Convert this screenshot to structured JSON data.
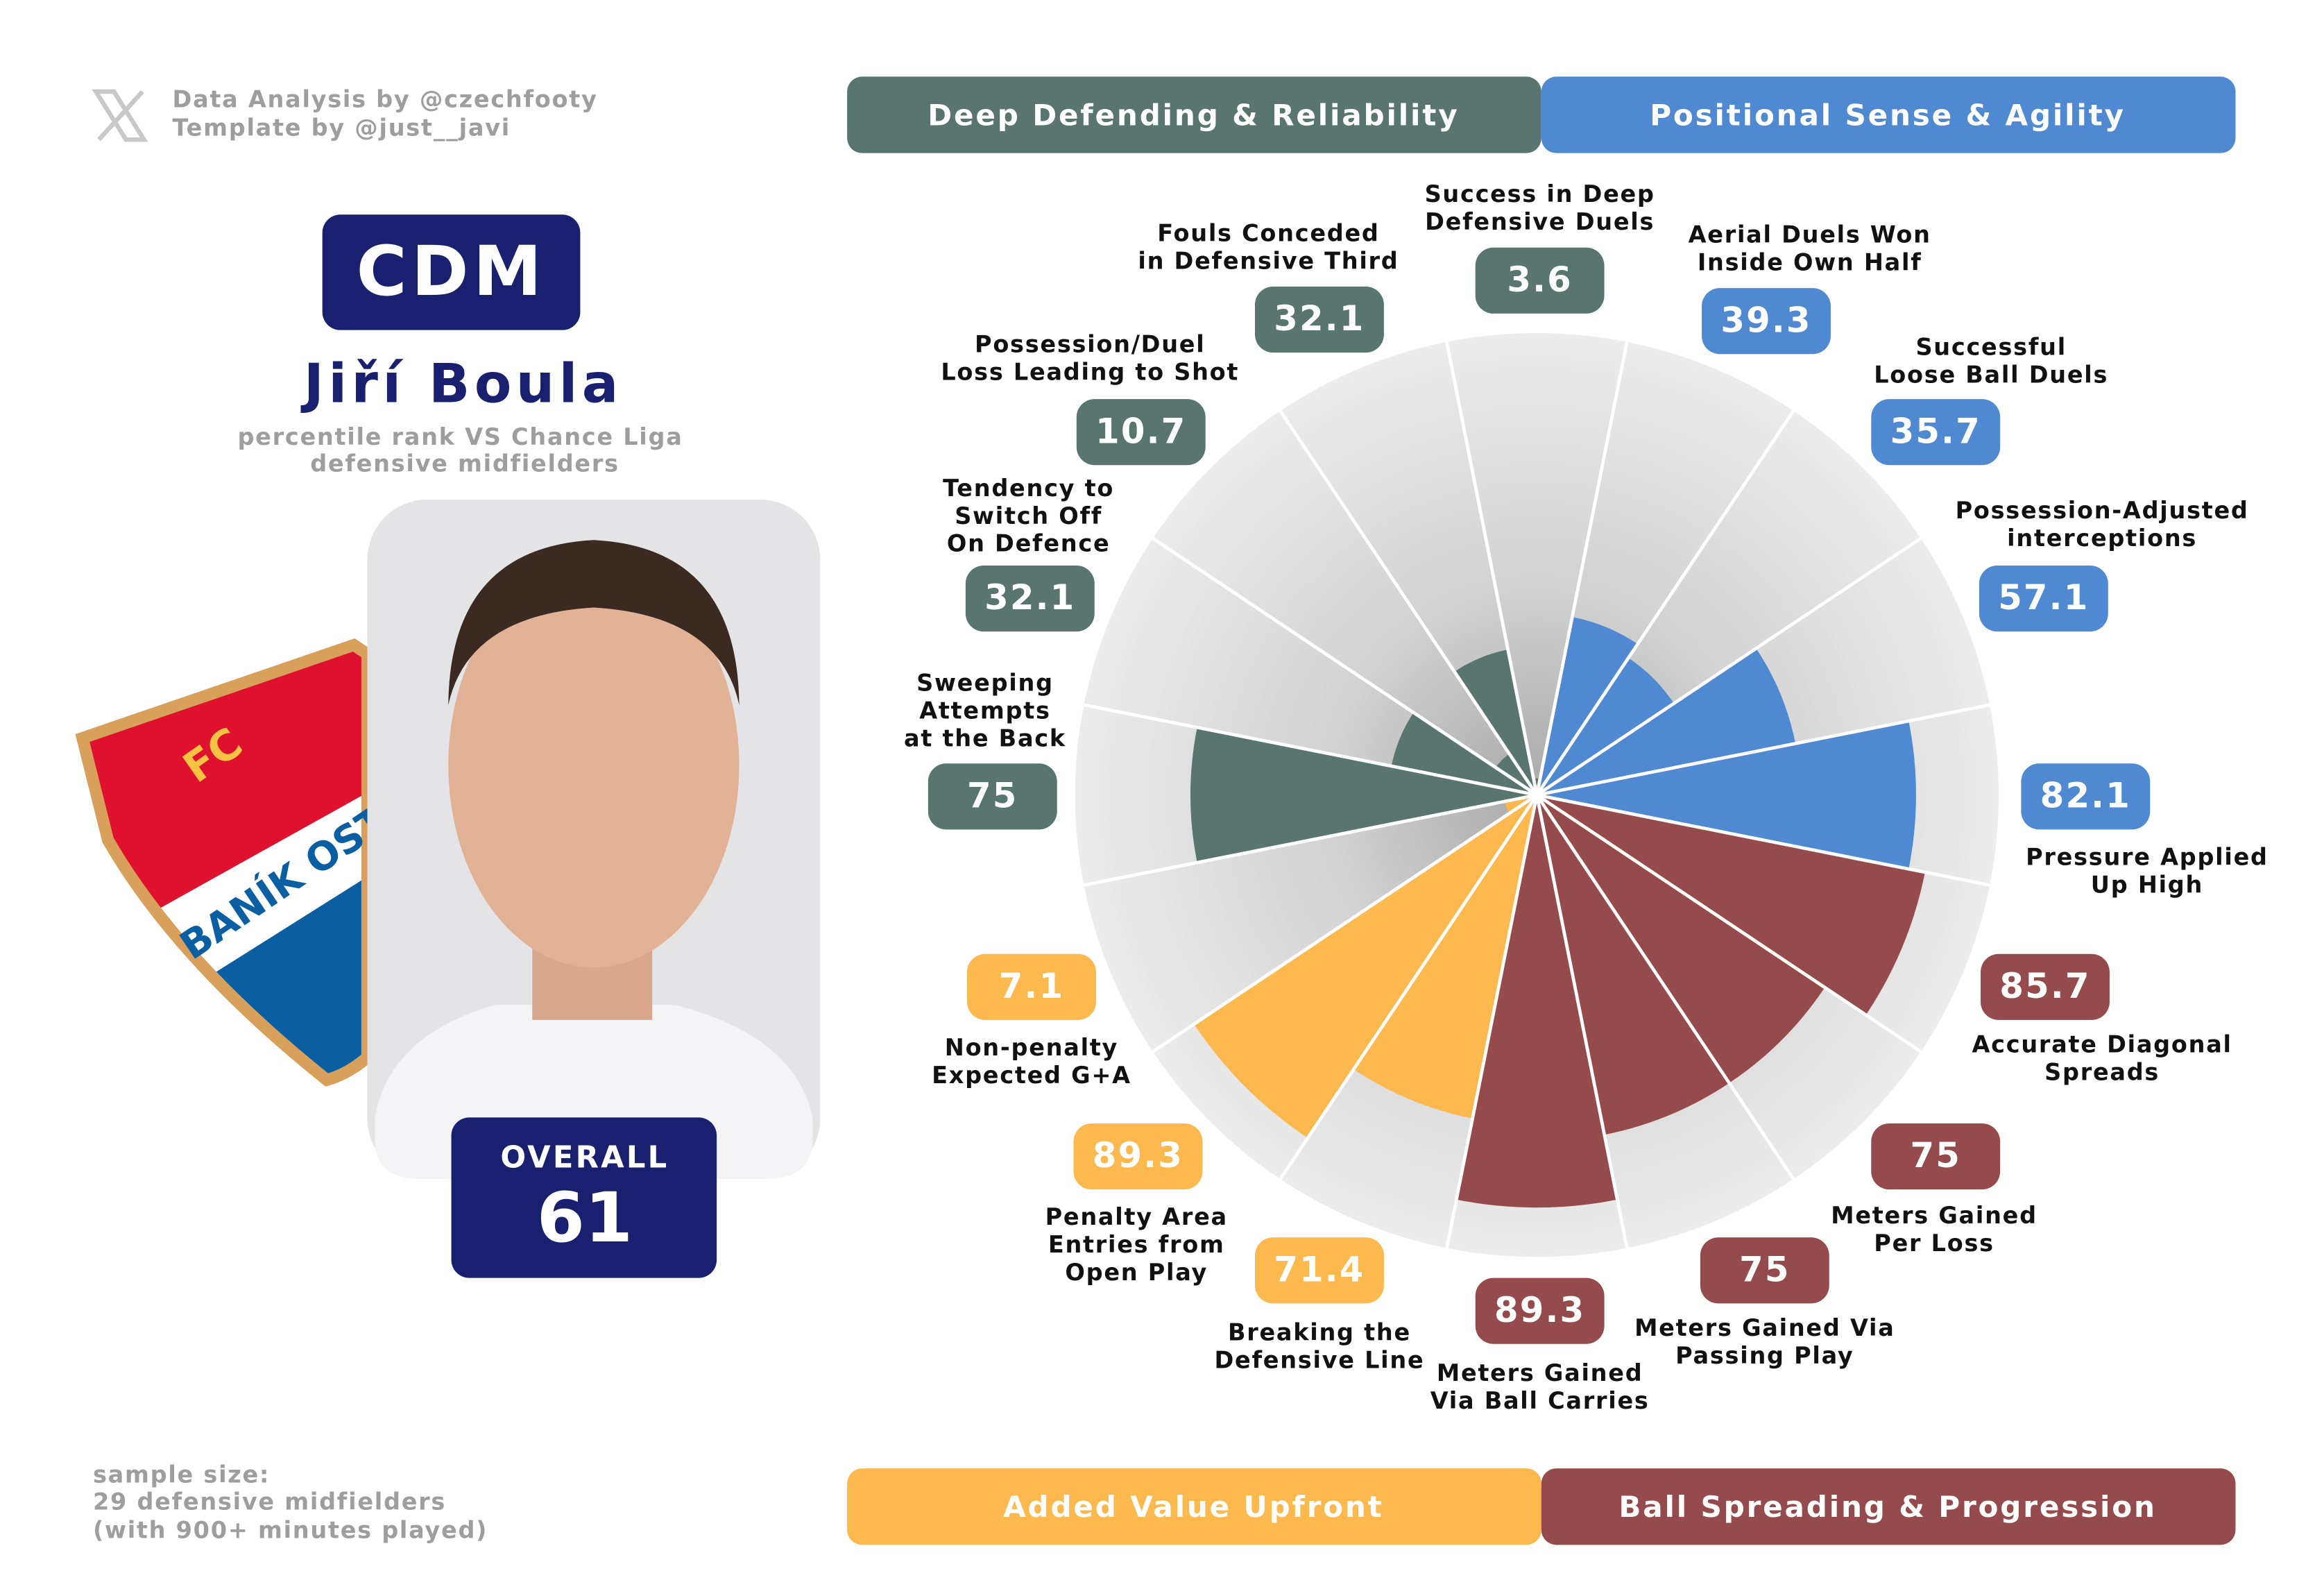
{
  "credits": [
    "Data Analysis by @czechfooty",
    "Template by @just__javi"
  ],
  "player": {
    "position": "CDM",
    "name": "Jiří Boula",
    "subtitle": [
      "percentile rank VS Chance Liga",
      "defensive midfielders"
    ],
    "overall_label": "OVERALL",
    "overall": 61
  },
  "badge": {
    "top": "FC",
    "band": "BANÍK OST"
  },
  "sample_size": [
    "sample size:",
    "29 defensive midfielders",
    "(with 900+ minutes played)"
  ],
  "chart_data": {
    "type": "pizza",
    "ylim": [
      0,
      100
    ],
    "categories": [
      "Success in Deep\nDefensive Duels",
      "Aerial Duels Won\nInside Own Half",
      "Successful\nLoose Ball Duels",
      "Possession-Adjusted\ninterceptions",
      "Pressure Applied\nUp High",
      "Accurate Diagonal\nSpreads",
      "Meters Gained\nPer Loss",
      "Meters Gained Via\nPassing Play",
      "Meters Gained\nVia Ball Carries",
      "Breaking the\nDefensive Line",
      "Penalty Area\nEntries from\nOpen Play",
      "Non-penalty\nExpected G+A",
      "Sweeping\nAttempts\nat the Back",
      "Tendency to\nSwitch Off\nOn Defence",
      "Possession/Duel\nLoss Leading to Shot",
      "Fouls Conceded\nin Defensive Third"
    ],
    "series": [
      {
        "name": "Deep Defending & Reliability",
        "color": "#587570",
        "values": [
          3.6,
          null,
          null,
          null,
          null,
          null,
          null,
          null,
          null,
          null,
          null,
          null,
          75,
          32.1,
          10.7,
          32.1
        ]
      },
      {
        "name": "Positional Sense & Agility",
        "color": "#4f89d2",
        "values": [
          null,
          39.3,
          35.7,
          57.1,
          82.1,
          null,
          null,
          null,
          null,
          null,
          null,
          null,
          null,
          null,
          null,
          null
        ]
      },
      {
        "name": "Added Value Upfront",
        "color": "#fdb84e",
        "values": [
          null,
          null,
          null,
          null,
          null,
          null,
          null,
          null,
          null,
          71.4,
          89.3,
          7.1,
          null,
          null,
          null,
          null
        ]
      },
      {
        "name": "Ball Spreading & Progression",
        "color": "#954b4b",
        "values": [
          null,
          null,
          null,
          null,
          null,
          85.7,
          75,
          75,
          89.3,
          null,
          null,
          null,
          null,
          null,
          null,
          null
        ]
      }
    ]
  }
}
